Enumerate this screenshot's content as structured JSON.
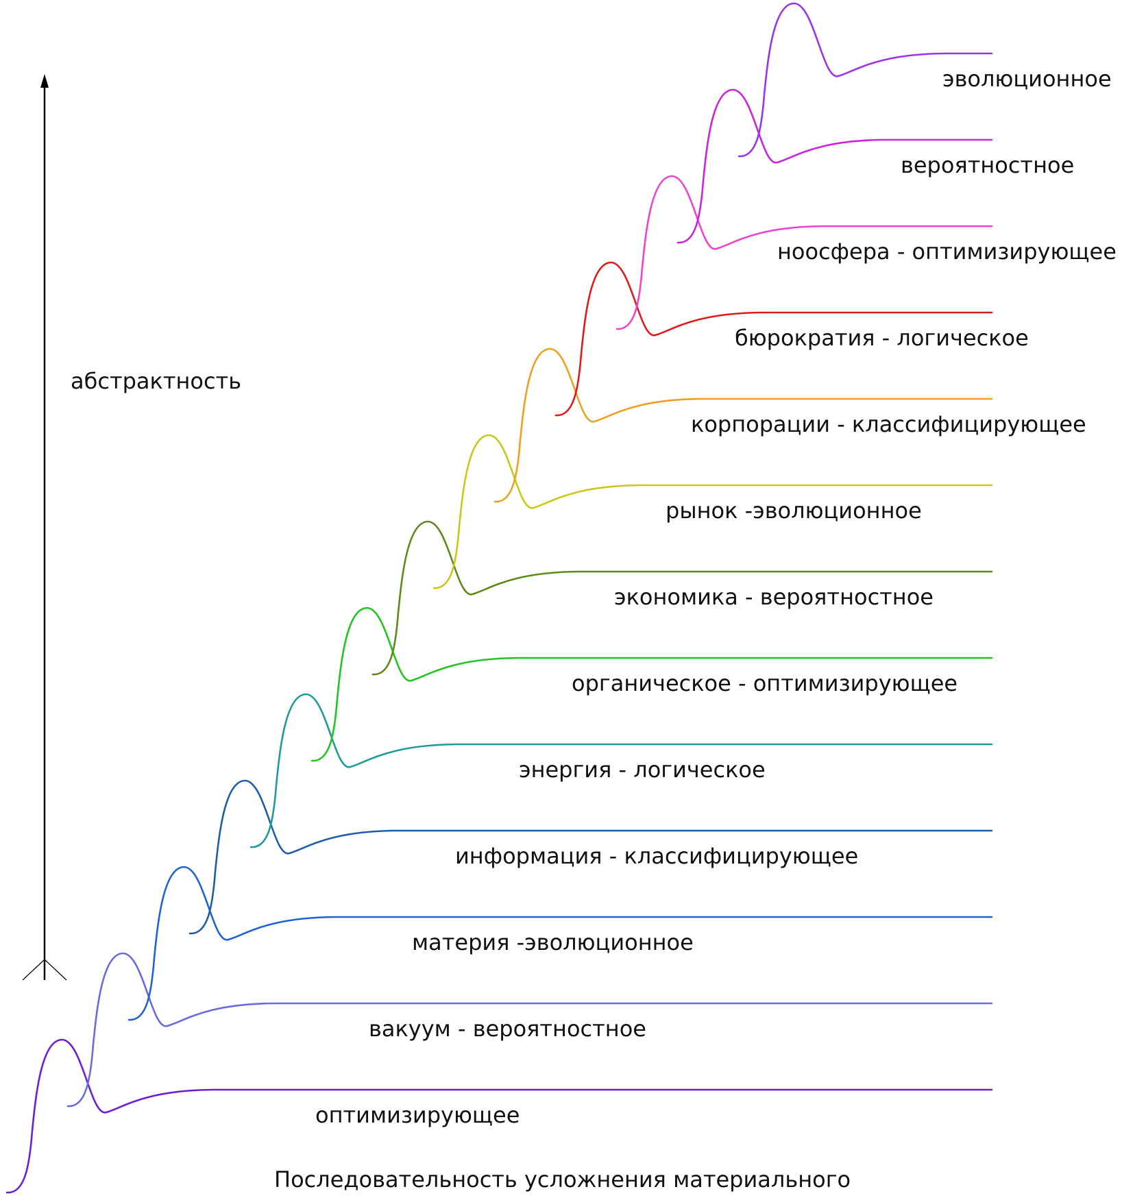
{
  "axis": {
    "label": "абстрактность"
  },
  "caption": "Последовательность усложнения материального",
  "levels": [
    {
      "label": "оптимизирующее",
      "color": "#6a1fd8"
    },
    {
      "label": "вакуум - вероятностное",
      "color": "#6a6ae0"
    },
    {
      "label": "материя -эволюционное",
      "color": "#1f62d6"
    },
    {
      "label": "информация - классифицирующее",
      "color": "#1f5cab"
    },
    {
      "label": "энергия - логическое",
      "color": "#1f9a9a"
    },
    {
      "label": "органическое - оптимизирующее",
      "color": "#22c422"
    },
    {
      "label": "экономика - вероятностное",
      "color": "#5f8a1a"
    },
    {
      "label": "рынок -эволюционное",
      "color": "#c8c81a"
    },
    {
      "label": "корпорации - классифицирующее",
      "color": "#f0a020"
    },
    {
      "label": "бюрократия - логическое",
      "color": "#e01a1a"
    },
    {
      "label": "ноосфера - оптимизирующее",
      "color": "#ee44cc"
    },
    {
      "label": "вероятностное",
      "color": "#cc22dd"
    },
    {
      "label": "эволюционное",
      "color": "#9a33ee"
    }
  ]
}
